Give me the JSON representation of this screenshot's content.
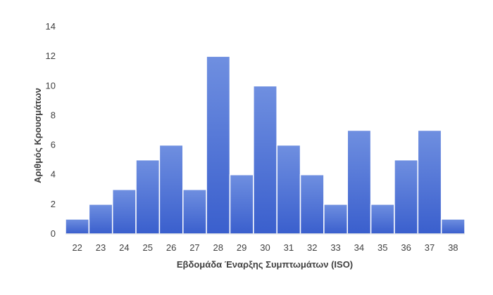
{
  "colors": {
    "bar_top": "#6f8fe0",
    "bar_bottom": "#3a5fcd",
    "bar_stroke": "#ffffff",
    "axis_line": "#d9d9d9",
    "text": "#404040"
  },
  "chart_data": {
    "type": "bar",
    "title": "",
    "xlabel": "Εβδομάδα Έναρξης Συμπτωμάτων (ISO)",
    "ylabel": "Αριθμός Κρουσμάτων",
    "categories": [
      "22",
      "23",
      "24",
      "25",
      "26",
      "27",
      "28",
      "29",
      "30",
      "31",
      "32",
      "33",
      "34",
      "35",
      "36",
      "37",
      "38"
    ],
    "values": [
      1,
      2,
      3,
      5,
      6,
      3,
      12,
      4,
      10,
      6,
      4,
      2,
      7,
      2,
      5,
      7,
      1
    ],
    "ylim": [
      0,
      14
    ],
    "yticks": [
      "0",
      "2",
      "4",
      "6",
      "8",
      "10",
      "12",
      "14"
    ],
    "grid": false,
    "legend": "none"
  }
}
